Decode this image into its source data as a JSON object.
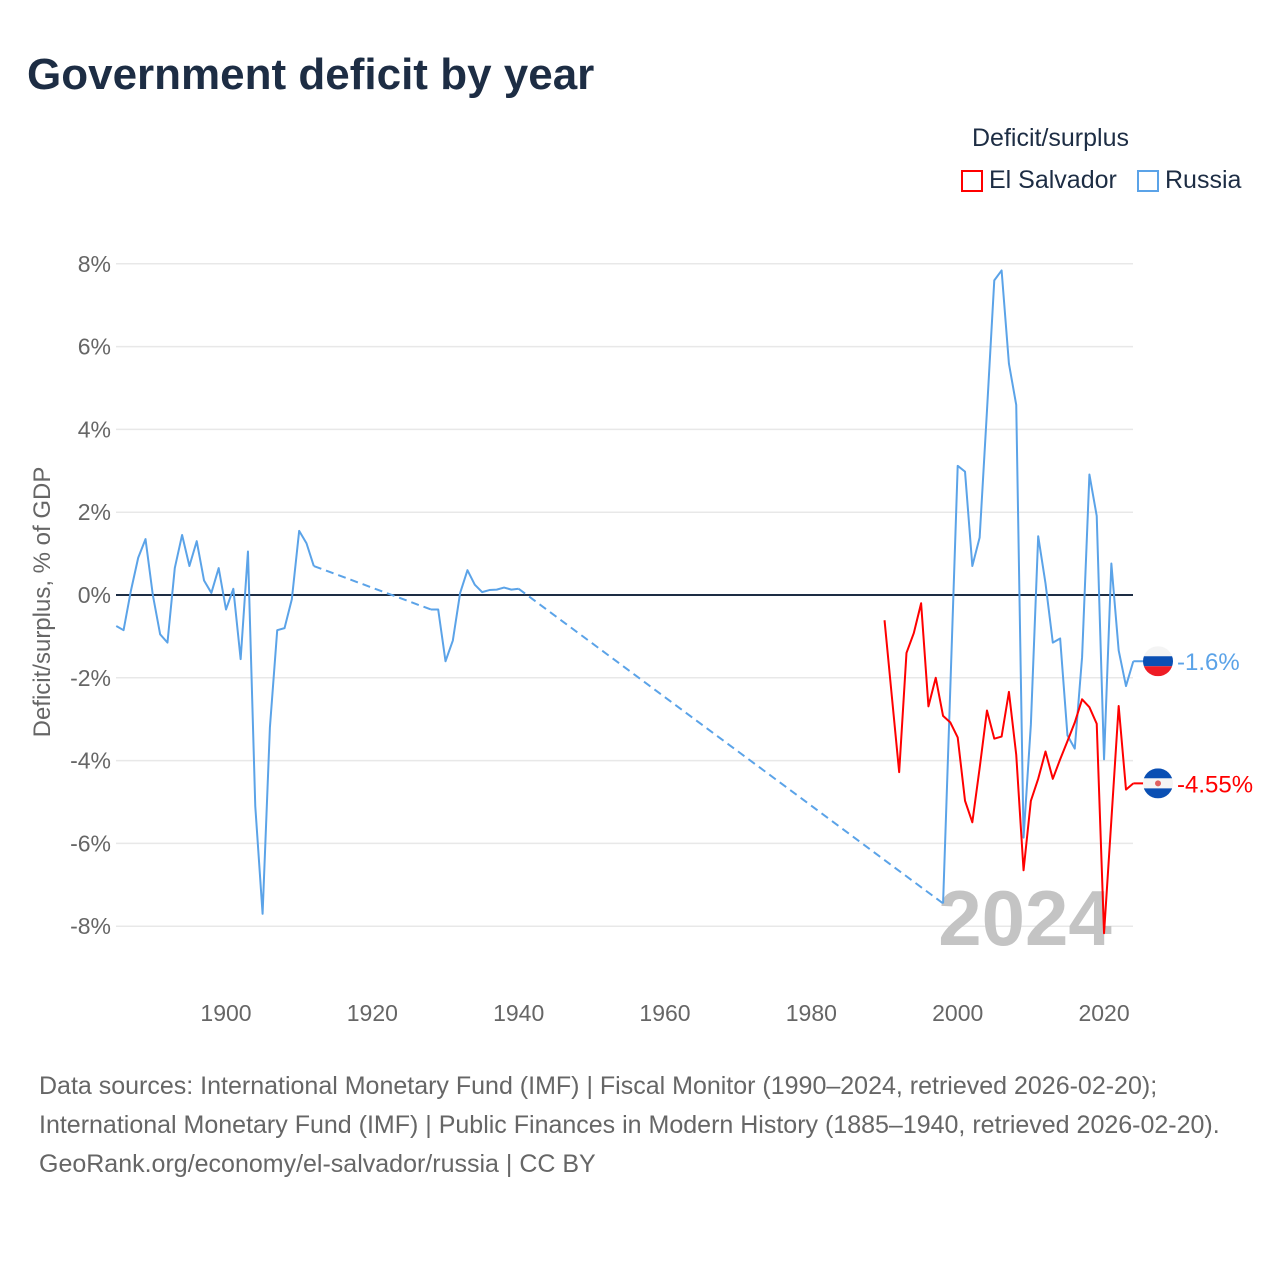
{
  "title": "Government deficit by year",
  "legend": {
    "title": "Deficit/surplus",
    "items": [
      {
        "name": "El Salvador",
        "color": "#ff0000"
      },
      {
        "name": "Russia",
        "color": "#5ba3e8"
      }
    ]
  },
  "chart_data": {
    "type": "line",
    "title": "Government deficit by year",
    "xlabel": "",
    "ylabel": "Deficit/surplus, % of GDP",
    "xlim": [
      1885,
      2024
    ],
    "ylim": [
      -9,
      8.5
    ],
    "x_ticks": [
      "1900",
      "1920",
      "1940",
      "1960",
      "1980",
      "2000",
      "2020"
    ],
    "y_ticks": [
      "8%",
      "6%",
      "4%",
      "2%",
      "0%",
      "-2%",
      "-4%",
      "-6%",
      "-8%"
    ],
    "y_tick_values": [
      8,
      6,
      4,
      2,
      0,
      -2,
      -4,
      -6,
      -8
    ],
    "x_tick_values": [
      1900,
      1920,
      1940,
      1960,
      1980,
      2000,
      2020
    ],
    "year_watermark": "2024",
    "grid": true,
    "legend_position": "top-right",
    "series": [
      {
        "name": "Russia",
        "color": "#5ba3e8",
        "end_label": "-1.6%",
        "points": [
          [
            1885,
            -0.75
          ],
          [
            1886,
            -0.85
          ],
          [
            1887,
            0.1
          ],
          [
            1888,
            0.9
          ],
          [
            1889,
            1.35
          ],
          [
            1890,
            0
          ],
          [
            1891,
            -0.95
          ],
          [
            1892,
            -1.15
          ],
          [
            1893,
            0.65
          ],
          [
            1894,
            1.45
          ],
          [
            1895,
            0.7
          ],
          [
            1896,
            1.3
          ],
          [
            1897,
            0.35
          ],
          [
            1898,
            0.05
          ],
          [
            1899,
            0.65
          ],
          [
            1900,
            -0.35
          ],
          [
            1901,
            0.15
          ],
          [
            1902,
            -1.55
          ],
          [
            1903,
            1.05
          ],
          [
            1904,
            -5.1
          ],
          [
            1905,
            -7.7
          ],
          [
            1906,
            -3.2
          ],
          [
            1907,
            -0.85
          ],
          [
            1908,
            -0.8
          ],
          [
            1909,
            -0.1
          ],
          [
            1910,
            1.55
          ],
          [
            1911,
            1.25
          ],
          [
            1912,
            0.7
          ],
          [
            1928,
            -0.35
          ],
          [
            1929,
            -0.35
          ],
          [
            1930,
            -1.6
          ],
          [
            1931,
            -1.1
          ],
          [
            1932,
            0.05
          ],
          [
            1933,
            0.6
          ],
          [
            1934,
            0.25
          ],
          [
            1935,
            0.07
          ],
          [
            1936,
            0.12
          ],
          [
            1937,
            0.13
          ],
          [
            1938,
            0.18
          ],
          [
            1939,
            0.13
          ],
          [
            1940,
            0.15
          ],
          [
            1998,
            -7.45
          ],
          [
            1999,
            -2.2
          ],
          [
            2000,
            3.12
          ],
          [
            2001,
            2.98
          ],
          [
            2002,
            0.7
          ],
          [
            2003,
            1.39
          ],
          [
            2004,
            4.45
          ],
          [
            2005,
            7.6
          ],
          [
            2006,
            7.84
          ],
          [
            2007,
            5.59
          ],
          [
            2008,
            4.59
          ],
          [
            2009,
            -5.86
          ],
          [
            2010,
            -3.13
          ],
          [
            2011,
            1.42
          ],
          [
            2012,
            0.28
          ],
          [
            2013,
            -1.15
          ],
          [
            2014,
            -1.05
          ],
          [
            2015,
            -3.39
          ],
          [
            2016,
            -3.71
          ],
          [
            2017,
            -1.5
          ],
          [
            2018,
            2.91
          ],
          [
            2019,
            1.91
          ],
          [
            2020,
            -3.97
          ],
          [
            2021,
            0.76
          ],
          [
            2022,
            -1.34
          ],
          [
            2023,
            -2.2
          ],
          [
            2024,
            -1.6
          ]
        ]
      },
      {
        "name": "El Salvador",
        "color": "#ff0000",
        "end_label": "-4.55%",
        "points": [
          [
            1990,
            -0.61
          ],
          [
            1991,
            -2.45
          ],
          [
            1992,
            -4.28
          ],
          [
            1993,
            -1.4
          ],
          [
            1994,
            -0.92
          ],
          [
            1995,
            -0.2
          ],
          [
            1996,
            -2.69
          ],
          [
            1997,
            -2.0
          ],
          [
            1998,
            -2.92
          ],
          [
            1999,
            -3.08
          ],
          [
            2000,
            -3.44
          ],
          [
            2001,
            -4.97
          ],
          [
            2002,
            -5.49
          ],
          [
            2003,
            -4.18
          ],
          [
            2004,
            -2.79
          ],
          [
            2005,
            -3.47
          ],
          [
            2006,
            -3.42
          ],
          [
            2007,
            -2.34
          ],
          [
            2008,
            -3.86
          ],
          [
            2009,
            -6.65
          ],
          [
            2010,
            -4.97
          ],
          [
            2011,
            -4.44
          ],
          [
            2012,
            -3.78
          ],
          [
            2013,
            -4.44
          ],
          [
            2014,
            -3.97
          ],
          [
            2015,
            -3.53
          ],
          [
            2016,
            -3.08
          ],
          [
            2017,
            -2.52
          ],
          [
            2018,
            -2.71
          ],
          [
            2019,
            -3.11
          ],
          [
            2020,
            -8.17
          ],
          [
            2021,
            -5.44
          ],
          [
            2022,
            -2.68
          ],
          [
            2023,
            -4.7
          ],
          [
            2024,
            -4.55
          ]
        ]
      }
    ]
  },
  "source": {
    "line1": "Data sources: International Monetary Fund (IMF) | Fiscal Monitor (1990–2024, retrieved 2026-02-20); International Monetary Fund (IMF) | Public Finances in Modern History (1885–1940, retrieved 2026-02-20).",
    "line2": "GeoRank.org/economy/el-salvador/russia | CC BY"
  }
}
